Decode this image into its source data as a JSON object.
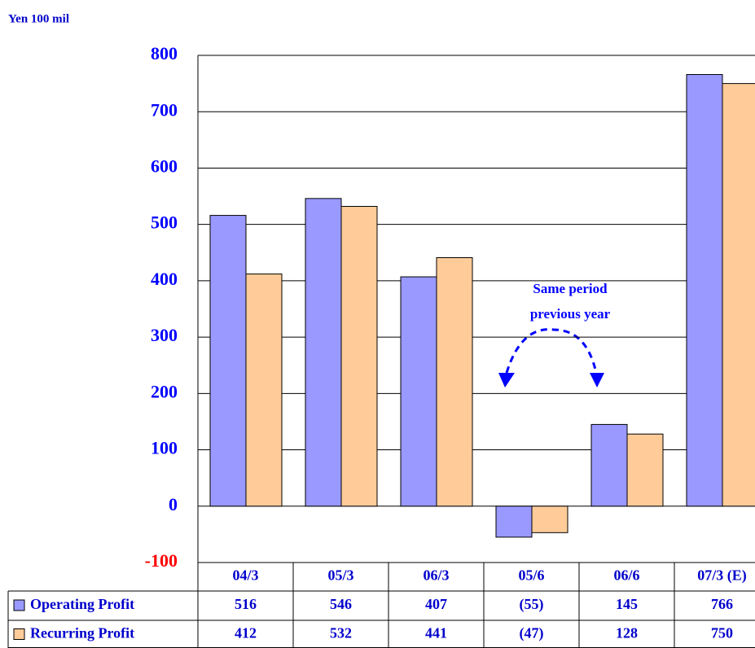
{
  "chart_data": {
    "type": "bar",
    "y_label": "Yen 100 mil",
    "categories": [
      "04/3",
      "05/3",
      "06/3",
      "05/6",
      "06/6",
      "07/3 (E)"
    ],
    "series": [
      {
        "name": "Operating Profit",
        "color": "#9999ff",
        "values": [
          516,
          546,
          407,
          -55,
          145,
          766
        ],
        "value_labels": [
          "516",
          "546",
          "407",
          "(55)",
          "145",
          "766"
        ]
      },
      {
        "name": "Recurring Profit",
        "color": "#ffcc99",
        "values": [
          412,
          532,
          441,
          -47,
          128,
          750
        ],
        "value_labels": [
          "412",
          "532",
          "441",
          "(47)",
          "128",
          "750"
        ]
      }
    ],
    "annotation": [
      "Same period",
      "previous year"
    ],
    "ylim": [
      -100,
      800
    ],
    "yticks": [
      -100,
      0,
      100,
      200,
      300,
      400,
      500,
      600,
      700,
      800
    ],
    "grid": true
  }
}
